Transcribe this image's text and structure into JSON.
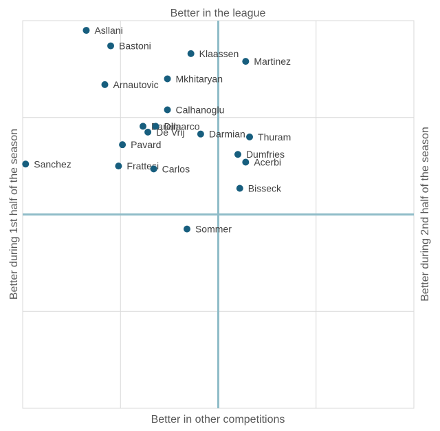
{
  "chart_data": {
    "type": "scatter",
    "title": "",
    "axis_titles": {
      "top": "Better in the league",
      "bottom": "Better in other competitions",
      "left": "Better during 1st half of the season",
      "right": "Better during 2nd half of the season"
    },
    "xlim": [
      0,
      4
    ],
    "ylim": [
      0,
      4
    ],
    "quadrant_lines": {
      "x": 2,
      "y": 2
    },
    "grid": true,
    "legend": "none",
    "colors": {
      "point": "#175E7E",
      "quadrant_line": "#8FBCC8",
      "grid": "#D9D9D9"
    },
    "points": [
      {
        "label": "Asllani",
        "x": 0.65,
        "y": 3.9
      },
      {
        "label": "Bastoni",
        "x": 0.9,
        "y": 3.74
      },
      {
        "label": "Klaassen",
        "x": 1.72,
        "y": 3.66
      },
      {
        "label": "Martinez",
        "x": 2.28,
        "y": 3.58
      },
      {
        "label": "Mkhitaryan",
        "x": 1.48,
        "y": 3.4
      },
      {
        "label": "Arnautovic",
        "x": 0.84,
        "y": 3.34
      },
      {
        "label": "Calhanoglu",
        "x": 1.48,
        "y": 3.08
      },
      {
        "label": "Barella",
        "x": 1.23,
        "y": 2.91
      },
      {
        "label": "Dimarco",
        "x": 1.36,
        "y": 2.91
      },
      {
        "label": "De Vrij",
        "x": 1.28,
        "y": 2.85
      },
      {
        "label": "Darmian",
        "x": 1.82,
        "y": 2.83
      },
      {
        "label": "Thuram",
        "x": 2.32,
        "y": 2.8
      },
      {
        "label": "Pavard",
        "x": 1.02,
        "y": 2.72
      },
      {
        "label": "Dumfries",
        "x": 2.2,
        "y": 2.62
      },
      {
        "label": "Acerbi",
        "x": 2.28,
        "y": 2.54
      },
      {
        "label": "Sanchez",
        "x": 0.03,
        "y": 2.52
      },
      {
        "label": "Frattesi",
        "x": 0.98,
        "y": 2.5
      },
      {
        "label": "Carlos",
        "x": 1.34,
        "y": 2.47
      },
      {
        "label": "Bisseck",
        "x": 2.22,
        "y": 2.27
      },
      {
        "label": "Sommer",
        "x": 1.68,
        "y": 1.85
      }
    ]
  }
}
